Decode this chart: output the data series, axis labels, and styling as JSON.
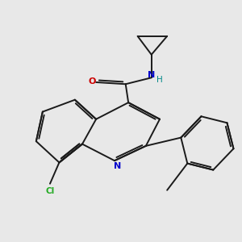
{
  "bg_color": "#e8e8e8",
  "bond_color": "#1a1a1a",
  "atom_colors": {
    "N": "#0000cc",
    "O": "#cc0000",
    "Cl": "#22aa22",
    "H": "#008888",
    "C": "#1a1a1a"
  },
  "figsize": [
    3.0,
    3.0
  ],
  "dpi": 100
}
